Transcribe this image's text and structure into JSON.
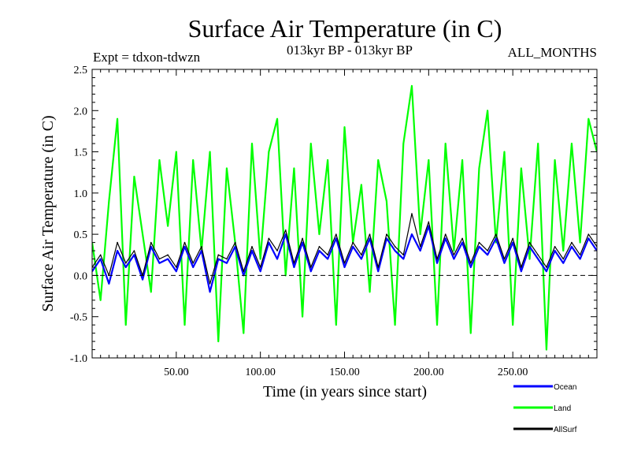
{
  "chart_data": {
    "type": "line",
    "title": "Surface Air Temperature (in C)",
    "subtitle_left": "Expt = tdxon-tdwzn",
    "subtitle_center": "013kyr BP - 013kyr BP",
    "subtitle_right": "ALL_MONTHS",
    "xlabel": "Time (in years since start)",
    "ylabel": "Surface Air Temperature (in C)",
    "xlim": [
      0,
      300
    ],
    "ylim": [
      -1.0,
      2.5
    ],
    "x_ticks": [
      50,
      100,
      150,
      200,
      250
    ],
    "x_tick_labels": [
      "50.00",
      "100.00",
      "150.00",
      "200.00",
      "250.00"
    ],
    "y_ticks": [
      -1.0,
      -0.5,
      0.0,
      0.5,
      1.0,
      1.5,
      2.0,
      2.5
    ],
    "y_tick_labels": [
      "-1.0",
      "-0.5",
      "0.0",
      "0.5",
      "1.0",
      "1.5",
      "2.0",
      "2.5"
    ],
    "zero_line": true,
    "grid": false,
    "legend_position": "bottom-right, outside plot",
    "series": [
      {
        "name": "Land",
        "color": "#00ff00",
        "x": [
          0,
          5,
          10,
          15,
          20,
          25,
          30,
          35,
          40,
          45,
          50,
          55,
          60,
          65,
          70,
          75,
          80,
          85,
          90,
          95,
          100,
          105,
          110,
          115,
          120,
          125,
          130,
          135,
          140,
          145,
          150,
          155,
          160,
          165,
          170,
          175,
          180,
          185,
          190,
          195,
          200,
          205,
          210,
          215,
          220,
          225,
          230,
          235,
          240,
          245,
          250,
          255,
          260,
          265,
          270,
          275,
          280,
          285,
          290,
          295,
          300
        ],
        "values": [
          0.4,
          -0.3,
          0.9,
          1.9,
          -0.6,
          1.2,
          0.5,
          -0.2,
          1.4,
          0.6,
          1.5,
          -0.6,
          1.4,
          0.3,
          1.5,
          -0.8,
          1.3,
          0.4,
          -0.7,
          1.6,
          0.2,
          1.5,
          1.9,
          0.0,
          1.3,
          -0.5,
          1.6,
          0.5,
          1.4,
          -0.6,
          1.8,
          0.4,
          1.1,
          -0.2,
          1.4,
          0.9,
          -0.6,
          1.6,
          2.3,
          0.5,
          1.4,
          -0.6,
          1.6,
          0.3,
          1.4,
          -0.7,
          1.3,
          2.0,
          0.4,
          1.5,
          -0.6,
          1.3,
          0.2,
          1.6,
          -0.9,
          1.4,
          0.3,
          1.6,
          0.4,
          1.9,
          1.5
        ]
      },
      {
        "name": "Ocean",
        "color": "#0000ff",
        "x": [
          0,
          5,
          10,
          15,
          20,
          25,
          30,
          35,
          40,
          45,
          50,
          55,
          60,
          65,
          70,
          75,
          80,
          85,
          90,
          95,
          100,
          105,
          110,
          115,
          120,
          125,
          130,
          135,
          140,
          145,
          150,
          155,
          160,
          165,
          170,
          175,
          180,
          185,
          190,
          195,
          200,
          205,
          210,
          215,
          220,
          225,
          230,
          235,
          240,
          245,
          250,
          255,
          260,
          265,
          270,
          275,
          280,
          285,
          290,
          295,
          300
        ],
        "values": [
          0.05,
          0.2,
          -0.1,
          0.3,
          0.1,
          0.25,
          -0.05,
          0.35,
          0.15,
          0.2,
          0.05,
          0.35,
          0.1,
          0.3,
          -0.2,
          0.2,
          0.15,
          0.35,
          0.0,
          0.3,
          0.05,
          0.4,
          0.2,
          0.5,
          0.1,
          0.4,
          0.05,
          0.3,
          0.2,
          0.45,
          0.1,
          0.35,
          0.2,
          0.45,
          0.05,
          0.45,
          0.3,
          0.2,
          0.5,
          0.3,
          0.6,
          0.15,
          0.45,
          0.2,
          0.4,
          0.1,
          0.35,
          0.25,
          0.45,
          0.15,
          0.4,
          0.05,
          0.35,
          0.2,
          0.05,
          0.3,
          0.15,
          0.35,
          0.2,
          0.45,
          0.3
        ]
      },
      {
        "name": "AllSurf",
        "color": "#000000",
        "x": [
          0,
          5,
          10,
          15,
          20,
          25,
          30,
          35,
          40,
          45,
          50,
          55,
          60,
          65,
          70,
          75,
          80,
          85,
          90,
          95,
          100,
          105,
          110,
          115,
          120,
          125,
          130,
          135,
          140,
          145,
          150,
          155,
          160,
          165,
          170,
          175,
          180,
          185,
          190,
          195,
          200,
          205,
          210,
          215,
          220,
          225,
          230,
          235,
          240,
          245,
          250,
          255,
          260,
          265,
          270,
          275,
          280,
          285,
          290,
          295,
          300
        ],
        "values": [
          0.1,
          0.25,
          0.0,
          0.4,
          0.15,
          0.3,
          0.0,
          0.4,
          0.2,
          0.25,
          0.1,
          0.4,
          0.15,
          0.35,
          -0.1,
          0.25,
          0.2,
          0.4,
          0.05,
          0.35,
          0.1,
          0.45,
          0.3,
          0.55,
          0.15,
          0.45,
          0.1,
          0.35,
          0.25,
          0.5,
          0.15,
          0.4,
          0.25,
          0.5,
          0.1,
          0.5,
          0.35,
          0.25,
          0.75,
          0.35,
          0.65,
          0.2,
          0.5,
          0.25,
          0.45,
          0.15,
          0.4,
          0.3,
          0.5,
          0.2,
          0.45,
          0.1,
          0.4,
          0.25,
          0.1,
          0.35,
          0.2,
          0.4,
          0.25,
          0.5,
          0.35
        ]
      }
    ]
  }
}
